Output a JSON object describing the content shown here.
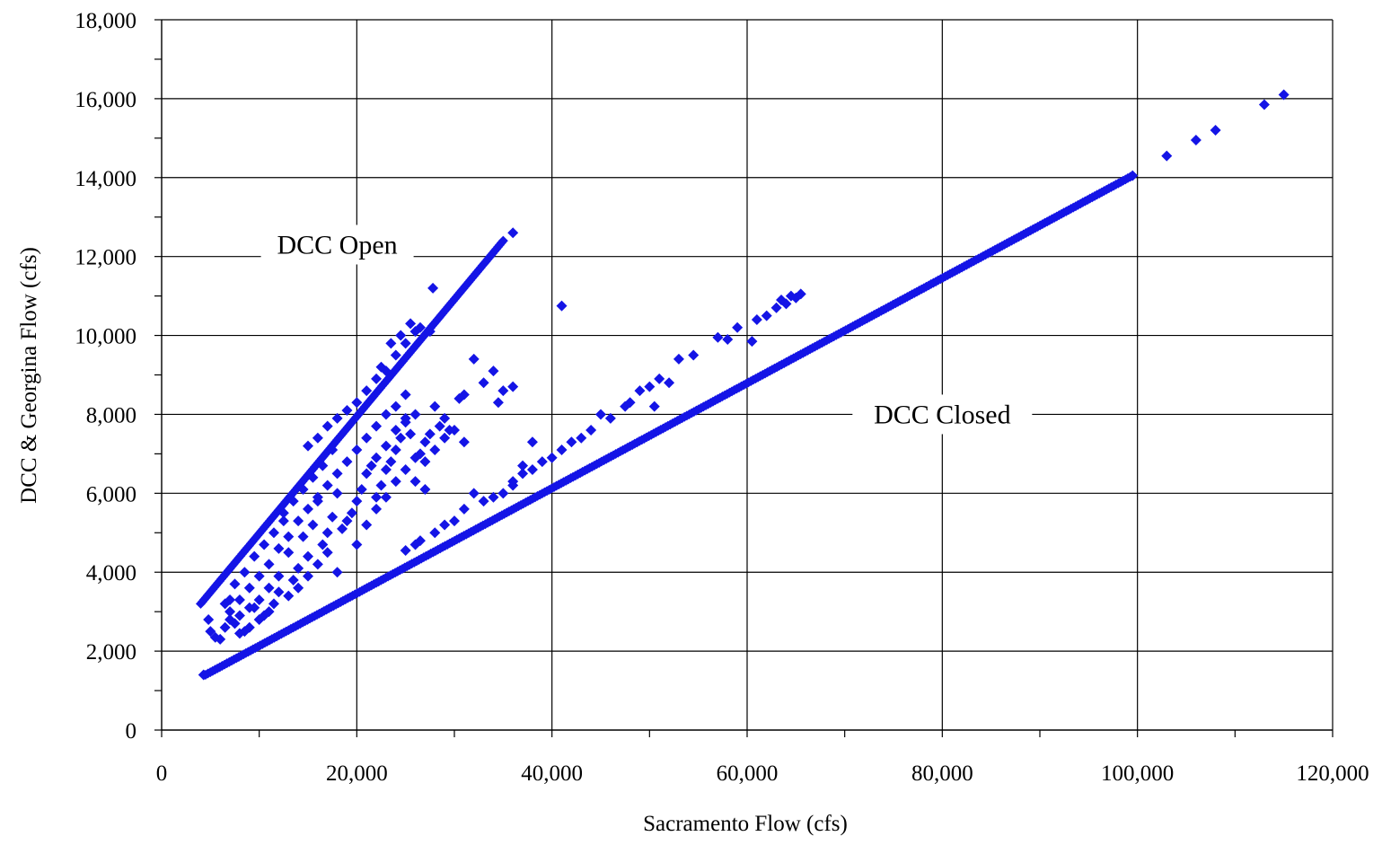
{
  "chart_data": {
    "type": "scatter",
    "title": "",
    "xlabel": "Sacramento Flow (cfs)",
    "ylabel": "DCC & Georgina Flow (cfs)",
    "xlim": [
      0,
      120000
    ],
    "ylim": [
      0,
      18000
    ],
    "x_ticks": [
      "0",
      "20,000",
      "40,000",
      "60,000",
      "80,000",
      "100,000",
      "120,000"
    ],
    "y_ticks": [
      "0",
      "2,000",
      "4,000",
      "6,000",
      "8,000",
      "10,000",
      "12,000",
      "14,000",
      "16,000",
      "18,000"
    ],
    "grid": true,
    "marker": "diamond",
    "marker_color": "#1414e6",
    "annotations": [
      {
        "text": "DCC Open",
        "x": 18000,
        "y": 12300
      },
      {
        "text": "DCC Closed",
        "x": 80000,
        "y": 8000
      }
    ],
    "trends": [
      {
        "label": "DCC Open",
        "x_start": 4000,
        "x_end": 35000,
        "y_start": 3200,
        "y_end": 12400
      },
      {
        "label": "DCC Closed",
        "x_start": 4500,
        "x_end": 99500,
        "y_start": 1400,
        "y_end": 14050
      }
    ],
    "series": [
      {
        "values": [
          [
            4300,
            1400
          ],
          [
            36000,
            12600
          ],
          [
            41000,
            10750
          ],
          [
            27800,
            11200
          ],
          [
            103000,
            14550
          ],
          [
            106000,
            14950
          ],
          [
            108000,
            15200
          ],
          [
            113000,
            15850
          ],
          [
            115000,
            16100
          ],
          [
            99500,
            14050
          ],
          [
            57000,
            9950
          ],
          [
            58000,
            9900
          ],
          [
            59000,
            10200
          ],
          [
            61000,
            10400
          ],
          [
            62000,
            10500
          ],
          [
            63000,
            10700
          ],
          [
            63500,
            10900
          ],
          [
            64000,
            10800
          ],
          [
            64500,
            11000
          ],
          [
            65000,
            10950
          ],
          [
            65500,
            11050
          ],
          [
            60500,
            9850
          ],
          [
            52000,
            8800
          ],
          [
            51000,
            8900
          ],
          [
            50000,
            8700
          ],
          [
            49000,
            8600
          ],
          [
            48000,
            8300
          ],
          [
            47500,
            8200
          ],
          [
            46000,
            7900
          ],
          [
            45000,
            8000
          ],
          [
            44000,
            7600
          ],
          [
            43000,
            7400
          ],
          [
            42000,
            7300
          ],
          [
            41000,
            7100
          ],
          [
            40000,
            6900
          ],
          [
            39000,
            6800
          ],
          [
            38000,
            6600
          ],
          [
            37000,
            6500
          ],
          [
            36000,
            6200
          ],
          [
            35000,
            6000
          ],
          [
            34000,
            5900
          ],
          [
            33000,
            5800
          ],
          [
            32000,
            6000
          ],
          [
            31000,
            5600
          ],
          [
            30000,
            5300
          ],
          [
            29000,
            5200
          ],
          [
            28000,
            5000
          ],
          [
            26500,
            4800
          ],
          [
            26000,
            4700
          ],
          [
            25000,
            4550
          ],
          [
            53000,
            9400
          ],
          [
            54500,
            9500
          ],
          [
            50500,
            8200
          ],
          [
            38000,
            7300
          ],
          [
            37000,
            6700
          ],
          [
            36000,
            6300
          ],
          [
            32000,
            9400
          ],
          [
            33000,
            8800
          ],
          [
            34000,
            9100
          ],
          [
            35000,
            8600
          ],
          [
            36000,
            8700
          ],
          [
            34500,
            8300
          ],
          [
            31000,
            8500
          ],
          [
            30500,
            8400
          ],
          [
            29500,
            7600
          ],
          [
            29000,
            7900
          ],
          [
            28500,
            7700
          ],
          [
            28000,
            8200
          ],
          [
            27500,
            7500
          ],
          [
            27000,
            7300
          ],
          [
            26500,
            7000
          ],
          [
            26000,
            6900
          ],
          [
            25500,
            7500
          ],
          [
            25000,
            7800
          ],
          [
            24500,
            7400
          ],
          [
            24000,
            7100
          ],
          [
            23500,
            6800
          ],
          [
            23000,
            6600
          ],
          [
            22500,
            6200
          ],
          [
            22000,
            5900
          ],
          [
            21500,
            6700
          ],
          [
            21000,
            6500
          ],
          [
            20500,
            6100
          ],
          [
            20000,
            5800
          ],
          [
            19500,
            5500
          ],
          [
            19000,
            5300
          ],
          [
            18500,
            5100
          ],
          [
            18000,
            6000
          ],
          [
            17500,
            5400
          ],
          [
            17000,
            5000
          ],
          [
            16500,
            4700
          ],
          [
            16000,
            5800
          ],
          [
            15500,
            5200
          ],
          [
            15000,
            4400
          ],
          [
            14500,
            4900
          ],
          [
            14000,
            4100
          ],
          [
            13500,
            3800
          ],
          [
            13000,
            4500
          ],
          [
            26000,
            8000
          ],
          [
            25000,
            7900
          ],
          [
            24000,
            7600
          ],
          [
            23000,
            7200
          ],
          [
            22000,
            6900
          ],
          [
            27000,
            6100
          ],
          [
            20000,
            4700
          ],
          [
            21000,
            5200
          ],
          [
            22000,
            5600
          ],
          [
            23000,
            5900
          ],
          [
            24000,
            6300
          ],
          [
            25000,
            6600
          ],
          [
            26000,
            6300
          ],
          [
            27000,
            6800
          ],
          [
            28000,
            7100
          ],
          [
            29000,
            7400
          ],
          [
            30000,
            7600
          ],
          [
            31000,
            7300
          ],
          [
            12000,
            3500
          ],
          [
            11500,
            3200
          ],
          [
            11000,
            3000
          ],
          [
            10500,
            2900
          ],
          [
            10000,
            2800
          ],
          [
            9500,
            3100
          ],
          [
            9000,
            2600
          ],
          [
            8500,
            2500
          ],
          [
            8000,
            2450
          ],
          [
            7500,
            2700
          ],
          [
            7000,
            3000
          ],
          [
            6500,
            3200
          ],
          [
            6000,
            2300
          ],
          [
            5500,
            2350
          ],
          [
            5000,
            2500
          ],
          [
            4800,
            2800
          ],
          [
            6500,
            2600
          ],
          [
            7000,
            2800
          ],
          [
            8000,
            3300
          ],
          [
            9000,
            3600
          ],
          [
            10000,
            3900
          ],
          [
            11000,
            4200
          ],
          [
            12000,
            4600
          ],
          [
            13000,
            4900
          ],
          [
            14000,
            5300
          ],
          [
            15000,
            5600
          ],
          [
            16000,
            5900
          ],
          [
            17000,
            6200
          ],
          [
            18000,
            6500
          ],
          [
            19000,
            6800
          ],
          [
            20000,
            7100
          ],
          [
            21000,
            7400
          ],
          [
            22000,
            7700
          ],
          [
            23000,
            8000
          ],
          [
            24000,
            8200
          ],
          [
            25000,
            8500
          ],
          [
            15000,
            7200
          ],
          [
            16000,
            7400
          ],
          [
            17000,
            7700
          ],
          [
            18000,
            7900
          ],
          [
            19000,
            8100
          ],
          [
            20000,
            8300
          ],
          [
            21000,
            8600
          ],
          [
            22000,
            8900
          ],
          [
            23000,
            9100
          ],
          [
            24000,
            9500
          ],
          [
            25000,
            9800
          ],
          [
            26000,
            10100
          ],
          [
            25500,
            10300
          ],
          [
            26500,
            10200
          ],
          [
            24500,
            10000
          ],
          [
            23500,
            9800
          ],
          [
            22500,
            9200
          ],
          [
            27500,
            10100
          ],
          [
            12500,
            5500
          ],
          [
            13500,
            5800
          ],
          [
            14500,
            6100
          ],
          [
            15500,
            6400
          ],
          [
            16500,
            6700
          ],
          [
            17500,
            7100
          ],
          [
            10500,
            4700
          ],
          [
            11500,
            5000
          ],
          [
            12500,
            5300
          ],
          [
            9500,
            4400
          ],
          [
            8500,
            4000
          ],
          [
            7500,
            3700
          ],
          [
            13000,
            3400
          ],
          [
            14000,
            3600
          ],
          [
            15000,
            3900
          ],
          [
            16000,
            4200
          ],
          [
            17000,
            4500
          ],
          [
            18000,
            4000
          ],
          [
            12000,
            3900
          ],
          [
            11000,
            3600
          ],
          [
            10000,
            3300
          ],
          [
            9000,
            3100
          ],
          [
            8000,
            2900
          ],
          [
            7000,
            3300
          ]
        ]
      }
    ]
  }
}
